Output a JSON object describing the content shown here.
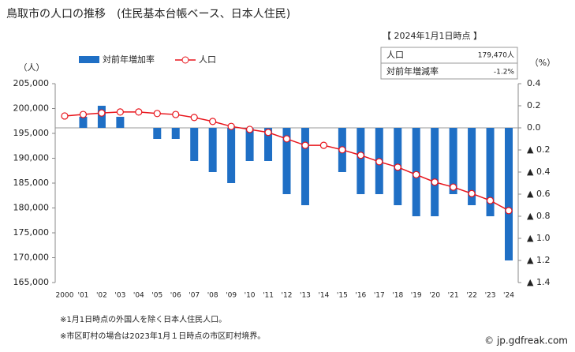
{
  "chart_data": {
    "type": "bar",
    "title": "鳥取市の人口の推移　(住民基本台帳ベース、日本人住民)",
    "y_label": "（人）",
    "y2_label": "（%）",
    "categories": [
      "2000",
      "'01",
      "'02",
      "'03",
      "'04",
      "'05",
      "'06",
      "'07",
      "'08",
      "'09",
      "'10",
      "'11",
      "'12",
      "'13",
      "'14",
      "'15",
      "'16",
      "'17",
      "'18",
      "'19",
      "'20",
      "'21",
      "'22",
      "'23",
      "'24"
    ],
    "series": [
      {
        "name": "対前年増加率",
        "type": "bar",
        "axis": "y2",
        "color": "#1f6fc5",
        "values": [
          null,
          0.1,
          0.2,
          0.1,
          0,
          -0.1,
          -0.1,
          -0.3,
          -0.4,
          -0.5,
          -0.3,
          -0.3,
          -0.6,
          -0.7,
          0,
          -0.4,
          -0.6,
          -0.6,
          -0.7,
          -0.8,
          -0.8,
          -0.6,
          -0.7,
          -0.8,
          -1.2
        ]
      },
      {
        "name": "人口",
        "type": "line",
        "color": "#e8141b",
        "values": [
          198500,
          198800,
          199100,
          199300,
          199300,
          199000,
          198800,
          198200,
          197400,
          196400,
          195800,
          195200,
          193900,
          192600,
          192600,
          191700,
          190600,
          189300,
          188200,
          186700,
          185200,
          184200,
          182900,
          181500,
          179470
        ]
      }
    ],
    "ylim": [
      165000,
      205000
    ],
    "yticks": [
      {
        "value": 165000,
        "label": "165,000"
      },
      {
        "value": 170000,
        "label": "170,000"
      },
      {
        "value": 175000,
        "label": "175,000"
      },
      {
        "value": 180000,
        "label": "180,000"
      },
      {
        "value": 185000,
        "label": "185,000"
      },
      {
        "value": 190000,
        "label": "190,000"
      },
      {
        "value": 195000,
        "label": "195,000"
      },
      {
        "value": 200000,
        "label": "200,000"
      },
      {
        "value": 205000,
        "label": "205,000"
      }
    ],
    "y2lim": [
      -1.4,
      0.4
    ],
    "y2ticks": [
      0.4,
      0.2,
      {
        "value": 0,
        "label": "0.0"
      },
      {
        "value": -0.2,
        "label": "▲ 0.2"
      },
      {
        "value": -0.4,
        "label": "▲ 0.4"
      },
      {
        "value": -0.6,
        "label": "▲ 0.6"
      },
      {
        "value": -0.8,
        "label": "▲ 0.8"
      },
      {
        "value": -1.0,
        "label": "▲ 1.0"
      },
      {
        "value": -1.2,
        "label": "▲ 1.2"
      },
      {
        "value": -1.4,
        "label": "▲ 1.4"
      }
    ]
  },
  "info_box": {
    "title": "【 2024年1月1日時点 】",
    "rows": [
      [
        "人口",
        "179,470人"
      ],
      [
        "対前年増減率",
        "-1.2%"
      ]
    ]
  },
  "footnotes": [
    "※1月1日時点の外国人を除く日本人住民人口。",
    "※市区町村の場合は2023年1月１日時点の市区町村境界。"
  ],
  "watermark": "© jp.gdfreak.com"
}
